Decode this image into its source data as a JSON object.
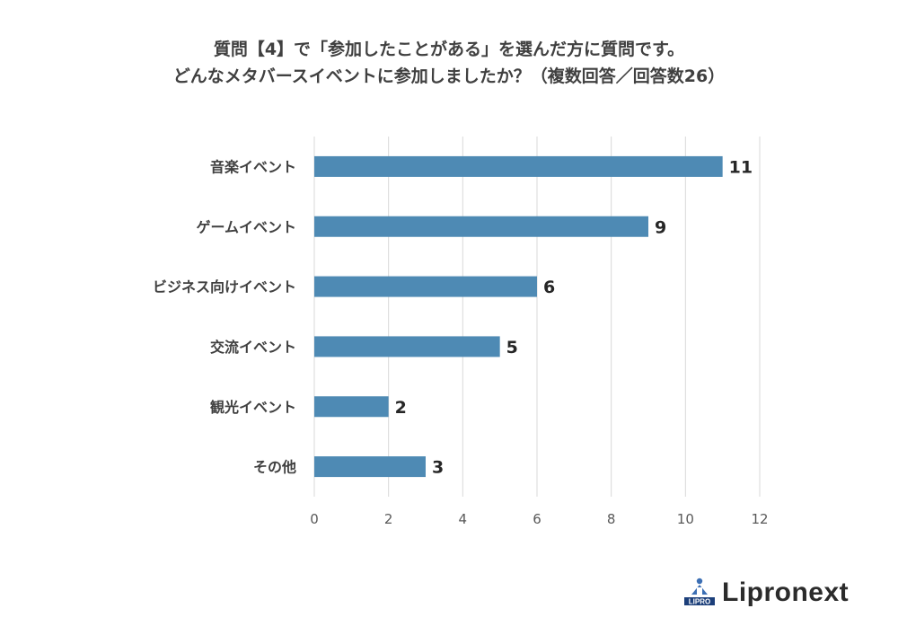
{
  "title_line1": "質問【4】で「参加したことがある」を選んだ方に質問です。",
  "title_line2": "どんなメタバースイベントに参加しましたか？（複数回答／回答数26）",
  "brand": "Lipronext",
  "brand_mark_text": "LIPRO",
  "colors": {
    "bar": "#4e8ab4",
    "grid": "#d9d9d9"
  },
  "chart_data": {
    "type": "bar",
    "orientation": "horizontal",
    "categories": [
      "音楽イベント",
      "ゲームイベント",
      "ビジネス向けイベント",
      "交流イベント",
      "観光イベント",
      "その他"
    ],
    "values": [
      11,
      9,
      6,
      5,
      2,
      3
    ],
    "xlim": [
      0,
      12
    ],
    "xticks": [
      0,
      2,
      4,
      6,
      8,
      10,
      12
    ],
    "grid": true,
    "data_labels": true
  }
}
